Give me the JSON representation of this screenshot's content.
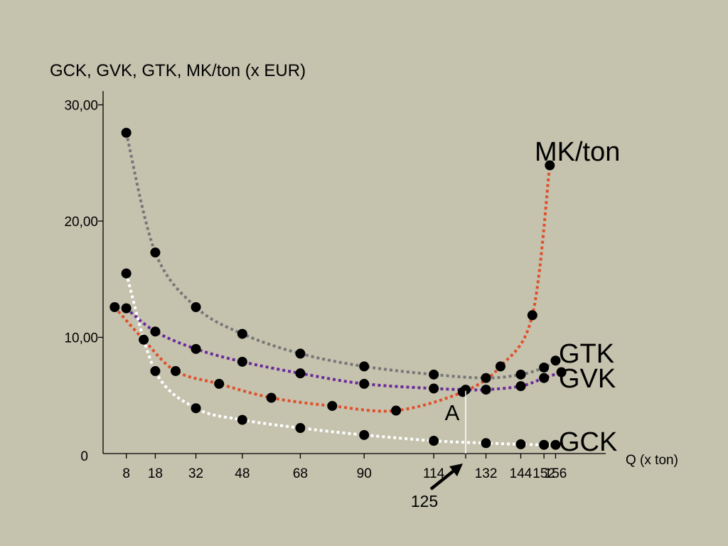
{
  "chart_data": {
    "type": "line",
    "ylabel": "GCK, GVK, GTK, MK/ton (x EUR)",
    "xlabel": "Q (x ton)",
    "ylim": [
      0,
      32
    ],
    "y_ticks": [
      {
        "value": 0,
        "label": "0"
      },
      {
        "value": 10,
        "label": "10,00"
      },
      {
        "value": 20,
        "label": "20,00"
      },
      {
        "value": 30,
        "label": "30,00"
      }
    ],
    "x_ticks": [
      {
        "value": 8,
        "label": "8"
      },
      {
        "value": 18,
        "label": "18"
      },
      {
        "value": 32,
        "label": "32"
      },
      {
        "value": 48,
        "label": "48"
      },
      {
        "value": 68,
        "label": "68"
      },
      {
        "value": 90,
        "label": "90"
      },
      {
        "value": 114,
        "label": "114"
      },
      {
        "value": 125,
        "label": "125"
      },
      {
        "value": 132,
        "label": "132"
      },
      {
        "value": 144,
        "label": "144"
      },
      {
        "value": 152,
        "label": "152"
      },
      {
        "value": 156,
        "label": "156"
      }
    ],
    "series": [
      {
        "name": "GTK",
        "color": "#777777",
        "x": [
          8,
          18,
          32,
          48,
          68,
          90,
          114,
          132,
          144,
          152,
          156
        ],
        "y": [
          27.6,
          17.3,
          12.6,
          10.3,
          8.6,
          7.5,
          6.8,
          6.5,
          6.8,
          7.4,
          8.0
        ]
      },
      {
        "name": "GVK",
        "color": "#6a2a9a",
        "x": [
          8,
          18,
          32,
          48,
          68,
          90,
          114,
          125,
          132,
          144,
          152,
          158
        ],
        "y": [
          12.5,
          10.5,
          9.0,
          7.9,
          6.9,
          6.0,
          5.6,
          5.5,
          5.5,
          5.8,
          6.5,
          7.0
        ]
      },
      {
        "name": "GCK",
        "color": "#ffffff",
        "x": [
          8,
          18,
          32,
          48,
          68,
          90,
          114,
          132,
          144,
          152,
          156
        ],
        "y": [
          15.5,
          7.1,
          3.9,
          2.9,
          2.2,
          1.6,
          1.1,
          0.9,
          0.8,
          0.75,
          0.75
        ]
      },
      {
        "name": "MK/ton",
        "color": "#e0502a",
        "x": [
          4,
          14,
          25,
          40,
          58,
          79,
          101,
          124,
          137,
          148,
          154
        ],
        "y": [
          12.6,
          9.8,
          7.1,
          6.0,
          4.8,
          4.1,
          3.7,
          5.3,
          7.5,
          11.9,
          24.8
        ]
      }
    ],
    "annotations": {
      "point_label": "A",
      "point_x": 125,
      "point_y": 5.4,
      "arrow_label": "125"
    },
    "series_labels": {
      "mk": "MK/ton",
      "gtk": "GTK",
      "gvk": "GVK",
      "gck": "GCK"
    }
  }
}
